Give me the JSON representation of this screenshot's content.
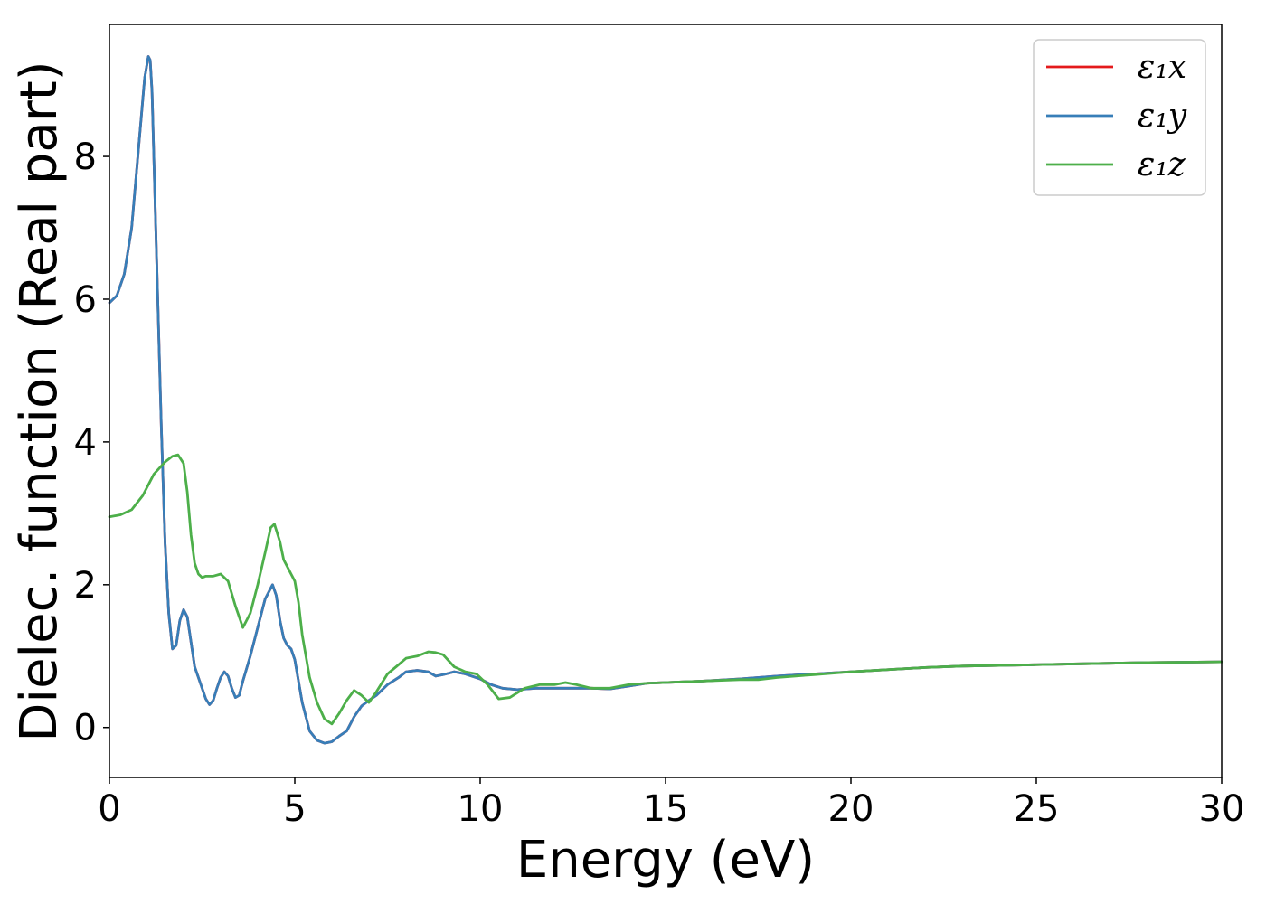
{
  "chart_data": {
    "type": "line",
    "xlabel": "Energy (eV)",
    "ylabel": "Dielec. function (Real part)",
    "xlim": [
      0,
      30
    ],
    "ylim": [
      -0.7,
      9.85
    ],
    "xticks": [
      0,
      5,
      10,
      15,
      20,
      25,
      30
    ],
    "yticks": [
      0,
      2,
      4,
      6,
      8
    ],
    "grid": false,
    "legend_position": "top-right",
    "series": [
      {
        "name": "ε₁x",
        "color": "#e41a1c",
        "x": [
          0,
          0.2,
          0.4,
          0.6,
          0.8,
          0.95,
          1.05,
          1.1,
          1.15,
          1.25,
          1.4,
          1.5,
          1.6,
          1.7,
          1.8,
          1.9,
          2.0,
          2.1,
          2.2,
          2.3,
          2.4,
          2.5,
          2.6,
          2.7,
          2.8,
          2.9,
          3.0,
          3.1,
          3.2,
          3.3,
          3.4,
          3.5,
          3.6,
          3.8,
          4.0,
          4.2,
          4.4,
          4.5,
          4.6,
          4.7,
          4.8,
          4.9,
          5.0,
          5.1,
          5.2,
          5.4,
          5.6,
          5.8,
          6.0,
          6.2,
          6.4,
          6.6,
          6.8,
          7.0,
          7.2,
          7.5,
          7.8,
          8.0,
          8.3,
          8.6,
          8.8,
          9.0,
          9.3,
          9.6,
          10.0,
          10.3,
          10.6,
          11.0,
          11.5,
          12.0,
          12.5,
          13.0,
          13.5,
          14.0,
          14.5,
          15.0,
          16.0,
          17.0,
          18.0,
          19.0,
          20.0,
          21.0,
          22.0,
          23.0,
          24.0,
          25.0,
          26.0,
          27.0,
          28.0,
          29.0,
          30.0
        ],
        "y": [
          5.95,
          6.05,
          6.35,
          7.0,
          8.2,
          9.1,
          9.4,
          9.35,
          8.9,
          7.0,
          4.2,
          2.6,
          1.6,
          1.1,
          1.15,
          1.5,
          1.65,
          1.55,
          1.2,
          0.85,
          0.7,
          0.55,
          0.4,
          0.32,
          0.38,
          0.55,
          0.7,
          0.78,
          0.72,
          0.55,
          0.42,
          0.45,
          0.65,
          1.0,
          1.4,
          1.8,
          2.0,
          1.85,
          1.5,
          1.25,
          1.15,
          1.1,
          0.95,
          0.65,
          0.35,
          -0.05,
          -0.18,
          -0.22,
          -0.2,
          -0.12,
          -0.05,
          0.15,
          0.3,
          0.38,
          0.45,
          0.6,
          0.7,
          0.78,
          0.8,
          0.78,
          0.72,
          0.74,
          0.78,
          0.75,
          0.68,
          0.6,
          0.55,
          0.53,
          0.55,
          0.55,
          0.55,
          0.55,
          0.54,
          0.58,
          0.62,
          0.63,
          0.65,
          0.68,
          0.72,
          0.75,
          0.78,
          0.81,
          0.84,
          0.86,
          0.87,
          0.88,
          0.89,
          0.9,
          0.91,
          0.915,
          0.92
        ]
      },
      {
        "name": "ε₁y",
        "color": "#377eb8",
        "x": [
          0,
          0.2,
          0.4,
          0.6,
          0.8,
          0.95,
          1.05,
          1.1,
          1.15,
          1.25,
          1.4,
          1.5,
          1.6,
          1.7,
          1.8,
          1.9,
          2.0,
          2.1,
          2.2,
          2.3,
          2.4,
          2.5,
          2.6,
          2.7,
          2.8,
          2.9,
          3.0,
          3.1,
          3.2,
          3.3,
          3.4,
          3.5,
          3.6,
          3.8,
          4.0,
          4.2,
          4.4,
          4.5,
          4.6,
          4.7,
          4.8,
          4.9,
          5.0,
          5.1,
          5.2,
          5.4,
          5.6,
          5.8,
          6.0,
          6.2,
          6.4,
          6.6,
          6.8,
          7.0,
          7.2,
          7.5,
          7.8,
          8.0,
          8.3,
          8.6,
          8.8,
          9.0,
          9.3,
          9.6,
          10.0,
          10.3,
          10.6,
          11.0,
          11.5,
          12.0,
          12.5,
          13.0,
          13.5,
          14.0,
          14.5,
          15.0,
          16.0,
          17.0,
          18.0,
          19.0,
          20.0,
          21.0,
          22.0,
          23.0,
          24.0,
          25.0,
          26.0,
          27.0,
          28.0,
          29.0,
          30.0
        ],
        "y": [
          5.95,
          6.05,
          6.35,
          7.0,
          8.2,
          9.1,
          9.4,
          9.35,
          8.9,
          7.0,
          4.2,
          2.6,
          1.6,
          1.1,
          1.15,
          1.5,
          1.65,
          1.55,
          1.2,
          0.85,
          0.7,
          0.55,
          0.4,
          0.32,
          0.38,
          0.55,
          0.7,
          0.78,
          0.72,
          0.55,
          0.42,
          0.45,
          0.65,
          1.0,
          1.4,
          1.8,
          2.0,
          1.85,
          1.5,
          1.25,
          1.15,
          1.1,
          0.95,
          0.65,
          0.35,
          -0.05,
          -0.18,
          -0.22,
          -0.2,
          -0.12,
          -0.05,
          0.15,
          0.3,
          0.38,
          0.45,
          0.6,
          0.7,
          0.78,
          0.8,
          0.78,
          0.72,
          0.74,
          0.78,
          0.75,
          0.68,
          0.6,
          0.55,
          0.53,
          0.55,
          0.55,
          0.55,
          0.55,
          0.54,
          0.58,
          0.62,
          0.63,
          0.65,
          0.68,
          0.72,
          0.75,
          0.78,
          0.81,
          0.84,
          0.86,
          0.87,
          0.88,
          0.89,
          0.9,
          0.91,
          0.915,
          0.92
        ]
      },
      {
        "name": "ε₁z",
        "color": "#4daf4a",
        "x": [
          0,
          0.3,
          0.6,
          0.9,
          1.2,
          1.5,
          1.7,
          1.85,
          2.0,
          2.1,
          2.2,
          2.3,
          2.4,
          2.5,
          2.6,
          2.8,
          3.0,
          3.2,
          3.4,
          3.6,
          3.8,
          4.0,
          4.2,
          4.35,
          4.45,
          4.6,
          4.7,
          4.8,
          4.9,
          5.0,
          5.1,
          5.2,
          5.4,
          5.6,
          5.8,
          6.0,
          6.2,
          6.4,
          6.6,
          6.8,
          7.0,
          7.2,
          7.5,
          7.8,
          8.0,
          8.3,
          8.6,
          8.8,
          9.0,
          9.3,
          9.6,
          9.9,
          10.2,
          10.5,
          10.8,
          11.2,
          11.6,
          12.0,
          12.3,
          12.6,
          13.0,
          13.5,
          14.0,
          14.5,
          15.0,
          15.5,
          16.0,
          17.0,
          17.5,
          18.0,
          19.0,
          20.0,
          21.0,
          22.0,
          23.0,
          24.0,
          25.0,
          26.0,
          27.0,
          28.0,
          29.0,
          30.0
        ],
        "y": [
          2.95,
          2.98,
          3.05,
          3.25,
          3.55,
          3.72,
          3.8,
          3.82,
          3.7,
          3.3,
          2.7,
          2.3,
          2.15,
          2.1,
          2.12,
          2.12,
          2.15,
          2.05,
          1.7,
          1.4,
          1.6,
          2.0,
          2.45,
          2.8,
          2.85,
          2.6,
          2.35,
          2.25,
          2.15,
          2.05,
          1.75,
          1.3,
          0.7,
          0.35,
          0.12,
          0.05,
          0.2,
          0.38,
          0.52,
          0.45,
          0.35,
          0.5,
          0.75,
          0.88,
          0.97,
          1.0,
          1.06,
          1.05,
          1.02,
          0.85,
          0.78,
          0.75,
          0.6,
          0.4,
          0.42,
          0.55,
          0.6,
          0.6,
          0.63,
          0.6,
          0.55,
          0.55,
          0.6,
          0.62,
          0.63,
          0.64,
          0.65,
          0.67,
          0.67,
          0.7,
          0.74,
          0.78,
          0.81,
          0.84,
          0.86,
          0.87,
          0.88,
          0.89,
          0.9,
          0.91,
          0.915,
          0.92
        ]
      }
    ]
  }
}
